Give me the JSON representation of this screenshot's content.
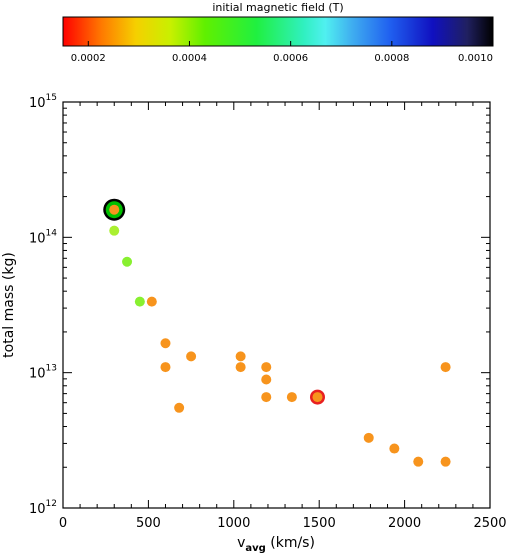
{
  "chart_data": {
    "type": "scatter",
    "xlabel": "v",
    "xlabel_sub": "avg",
    "xlabel_unit": " (km/s)",
    "ylabel": "total mass (kg)",
    "xlim": [
      0,
      2500
    ],
    "ylim": [
      1000000000000.0,
      1000000000000000.0
    ],
    "yscale": "log",
    "x_ticks": [
      0,
      500,
      1000,
      1500,
      2000,
      2500
    ],
    "x_tick_labels": [
      "0",
      "500",
      "1000",
      "1500",
      "2000",
      "2500"
    ],
    "y_ticks": [
      1000000000000.0,
      10000000000000.0,
      100000000000000.0,
      1000000000000000.0
    ],
    "y_tick_labels": [
      {
        "base": "10",
        "exp": "12"
      },
      {
        "base": "10",
        "exp": "13"
      },
      {
        "base": "10",
        "exp": "14"
      },
      {
        "base": "10",
        "exp": "15"
      }
    ],
    "colorbar": {
      "title": "initial magnetic field (T)",
      "range": [
        0.00015,
        0.001
      ],
      "ticks": [
        0.0002,
        0.0004,
        0.0006,
        0.0008,
        0.001
      ],
      "tick_labels": [
        "0.0002",
        "0.0004",
        "0.0006",
        "0.0008",
        "0.0010"
      ]
    },
    "points": [
      {
        "x": 300,
        "y": 160000000000000.0,
        "c": "#f7941d",
        "ring": "#00c000",
        "outer": "#000000"
      },
      {
        "x": 300,
        "y": 112000000000000.0,
        "c": "#aaf030"
      },
      {
        "x": 375,
        "y": 66000000000000.0,
        "c": "#88f030"
      },
      {
        "x": 450,
        "y": 33500000000000.0,
        "c": "#88f030"
      },
      {
        "x": 520,
        "y": 33500000000000.0,
        "c": "#f7941d"
      },
      {
        "x": 600,
        "y": 16500000000000.0,
        "c": "#f7941d"
      },
      {
        "x": 600,
        "y": 11000000000000.0,
        "c": "#f7941d"
      },
      {
        "x": 680,
        "y": 5500000000000.0,
        "c": "#f7941d"
      },
      {
        "x": 750,
        "y": 13200000000000.0,
        "c": "#f7941d"
      },
      {
        "x": 1040,
        "y": 13200000000000.0,
        "c": "#f7941d"
      },
      {
        "x": 1040,
        "y": 11000000000000.0,
        "c": "#f7941d"
      },
      {
        "x": 1190,
        "y": 11000000000000.0,
        "c": "#f7941d"
      },
      {
        "x": 1190,
        "y": 8900000000000.0,
        "c": "#f7941d"
      },
      {
        "x": 1190,
        "y": 6600000000000.0,
        "c": "#f7941d"
      },
      {
        "x": 1340,
        "y": 6600000000000.0,
        "c": "#f7941d"
      },
      {
        "x": 1490,
        "y": 6600000000000.0,
        "c": "#f7941d",
        "ring": "#e82020"
      },
      {
        "x": 1790,
        "y": 3300000000000.0,
        "c": "#f7941d"
      },
      {
        "x": 1940,
        "y": 2750000000000.0,
        "c": "#f7941d"
      },
      {
        "x": 2080,
        "y": 2200000000000.0,
        "c": "#f7941d"
      },
      {
        "x": 2240,
        "y": 2200000000000.0,
        "c": "#f7941d"
      },
      {
        "x": 2240,
        "y": 11000000000000.0,
        "c": "#f7941d"
      }
    ]
  }
}
